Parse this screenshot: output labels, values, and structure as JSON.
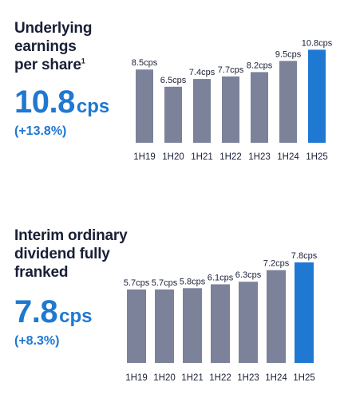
{
  "colors": {
    "bar": "#7b8299",
    "highlight": "#1f78d1",
    "text": "#1a1f36",
    "accent": "#1f78d1"
  },
  "panels": [
    {
      "heading": [
        "Underlying",
        "earnings",
        "per share"
      ],
      "footnote": "1",
      "big_value": "10.8",
      "big_unit": "cps",
      "change": "(+13.8%)"
    },
    {
      "heading": [
        "Interim ordinary",
        "dividend fully",
        "franked"
      ],
      "footnote": "",
      "big_value": "7.8",
      "big_unit": "cps",
      "change": "(+8.3%)"
    }
  ],
  "chart_data": [
    {
      "type": "bar",
      "categories": [
        "1H19",
        "1H20",
        "1H21",
        "1H22",
        "1H23",
        "1H24",
        "1H25"
      ],
      "values": [
        8.5,
        6.5,
        7.4,
        7.7,
        8.2,
        9.5,
        10.8
      ],
      "value_labels": [
        "8.5cps",
        "6.5cps",
        "7.4cps",
        "7.7cps",
        "8.2cps",
        "9.5cps",
        "10.8cps"
      ],
      "highlight_index": 6,
      "ylim": [
        0,
        11.2
      ],
      "grid": false,
      "title": "Underlying earnings per share",
      "xlabel": "",
      "ylabel": ""
    },
    {
      "type": "bar",
      "categories": [
        "1H19",
        "1H20",
        "1H21",
        "1H22",
        "1H23",
        "1H24",
        "1H25"
      ],
      "values": [
        5.7,
        5.7,
        5.8,
        6.1,
        6.3,
        7.2,
        7.8
      ],
      "value_labels": [
        "5.7cps",
        "5.7cps",
        "5.8cps",
        "6.1cps",
        "6.3cps",
        "7.2cps",
        "7.8cps"
      ],
      "highlight_index": 6,
      "ylim": [
        0,
        7.8
      ],
      "grid": false,
      "title": "Interim ordinary dividend fully franked",
      "xlabel": "",
      "ylabel": ""
    }
  ]
}
